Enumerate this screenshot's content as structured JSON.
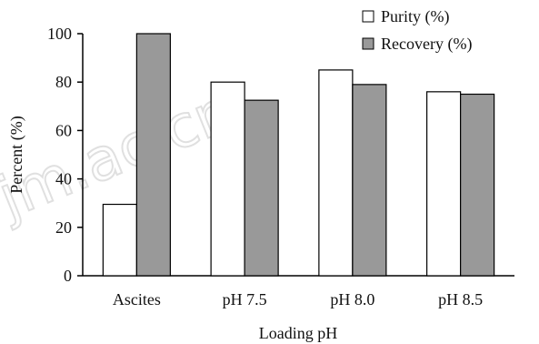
{
  "chart_data": {
    "type": "bar",
    "categories": [
      "Ascites",
      "pH 7.5",
      "pH 8.0",
      "pH 8.5"
    ],
    "series": [
      {
        "name": "Purity (%)",
        "values": [
          29.5,
          80,
          85,
          76
        ],
        "color": "#ffffff"
      },
      {
        "name": "Recovery (%)",
        "values": [
          100,
          72.5,
          79,
          75
        ],
        "color": "#999999"
      }
    ],
    "xlabel": "Loading pH",
    "ylabel": "Percent (%)",
    "ylim": [
      0,
      100
    ],
    "yticks": [
      "0",
      "20",
      "40",
      "60",
      "80",
      "100"
    ],
    "legend_position": "top-right",
    "grid": false
  },
  "watermark": "jm.ac.cn"
}
